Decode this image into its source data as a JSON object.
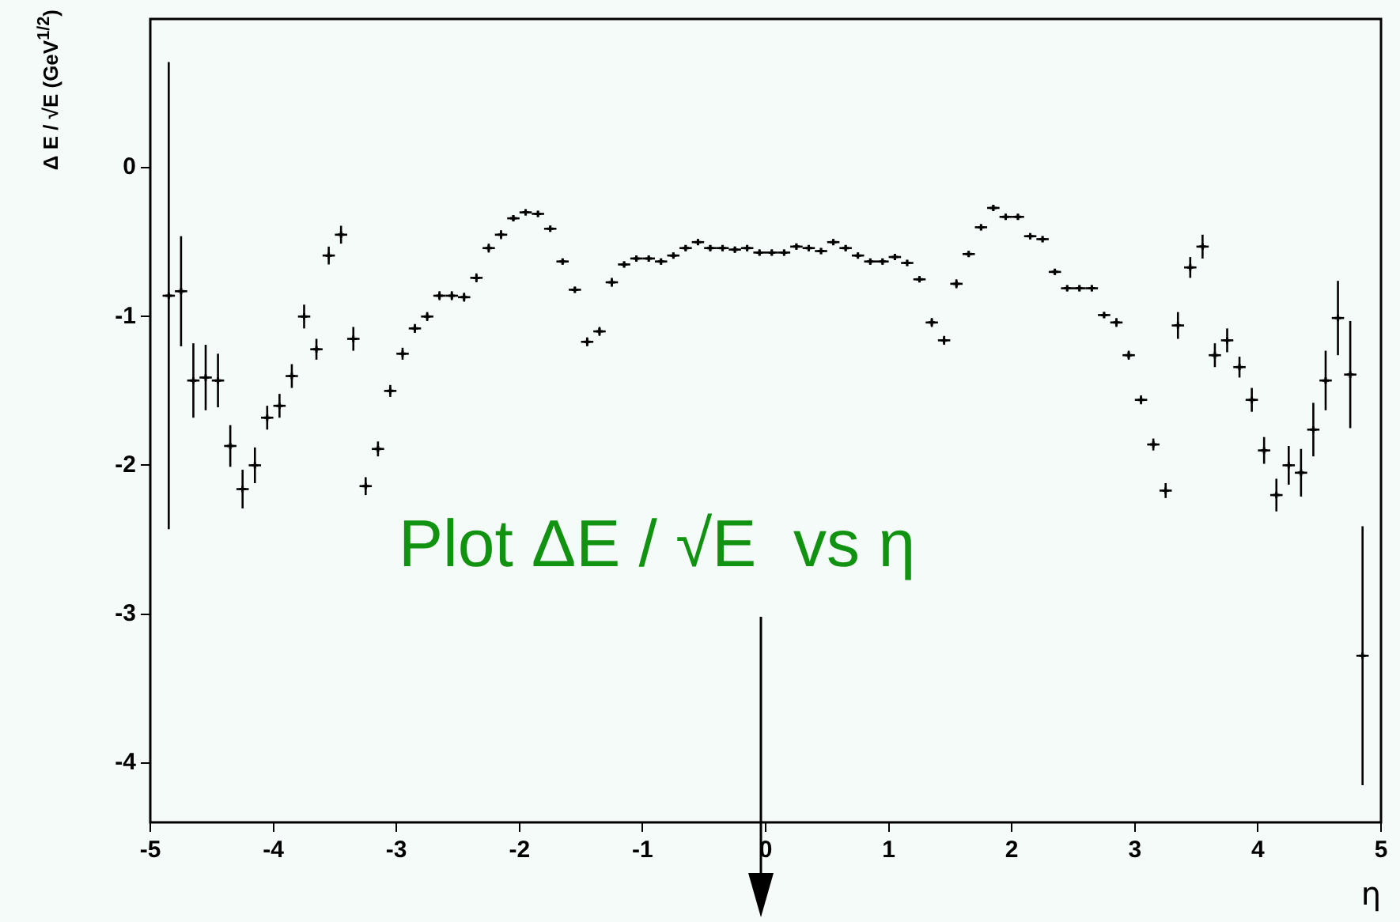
{
  "chart_data": {
    "type": "scatter",
    "xlabel": "η",
    "ylabel": "Δ E / √E (GeV$^{1/2}$)",
    "annotations": [
      "Plot ΔE / √E  vs η"
    ],
    "xlim": [
      -5,
      5
    ],
    "xticks": [
      -5,
      -4,
      -3,
      -2,
      -1,
      0,
      1,
      2,
      3,
      4,
      5
    ],
    "ylim": [
      -4.4,
      1
    ],
    "yticks": [
      -4,
      -3,
      -2,
      -1,
      0
    ],
    "grid": false,
    "legend": false,
    "marker": "cross",
    "series": [
      {
        "color": "#000000",
        "x": [
          -4.85,
          -4.75,
          -4.65,
          -4.55,
          -4.45,
          -4.35,
          -4.25,
          -4.15,
          -4.05,
          -3.95,
          -3.85,
          -3.75,
          -3.65,
          -3.55,
          -3.45,
          -3.35,
          -3.25,
          -3.15,
          -3.05,
          -2.95,
          -2.85,
          -2.75,
          -2.65,
          -2.55,
          -2.45,
          -2.35,
          -2.25,
          -2.15,
          -2.05,
          -1.95,
          -1.85,
          -1.75,
          -1.65,
          -1.55,
          -1.45,
          -1.35,
          -1.25,
          -1.15,
          -1.05,
          -0.95,
          -0.85,
          -0.75,
          -0.65,
          -0.55,
          -0.45,
          -0.35,
          -0.25,
          -0.15,
          -0.05,
          0.05,
          0.15,
          0.25,
          0.35,
          0.45,
          0.55,
          0.65,
          0.75,
          0.85,
          0.95,
          1.05,
          1.15,
          1.25,
          1.35,
          1.45,
          1.55,
          1.65,
          1.75,
          1.85,
          1.95,
          2.05,
          2.15,
          2.25,
          2.35,
          2.45,
          2.55,
          2.65,
          2.75,
          2.85,
          2.95,
          3.05,
          3.15,
          3.25,
          3.35,
          3.45,
          3.55,
          3.65,
          3.75,
          3.85,
          3.95,
          4.05,
          4.15,
          4.25,
          4.35,
          4.45,
          4.55,
          4.65,
          4.75,
          4.85
        ],
        "values": [
          -0.86,
          -0.83,
          -1.43,
          -1.41,
          -1.43,
          -1.87,
          -2.16,
          -2.0,
          -1.68,
          -1.6,
          -1.4,
          -1.0,
          -1.22,
          -0.59,
          -0.45,
          -1.15,
          -2.14,
          -1.89,
          -1.5,
          -1.25,
          -1.08,
          -1.0,
          -0.86,
          -0.86,
          -0.87,
          -0.74,
          -0.54,
          -0.45,
          -0.34,
          -0.3,
          -0.31,
          -0.41,
          -0.63,
          -0.82,
          -1.17,
          -1.1,
          -0.77,
          -0.65,
          -0.61,
          -0.61,
          -0.63,
          -0.59,
          -0.54,
          -0.5,
          -0.54,
          -0.54,
          -0.55,
          -0.54,
          -0.57,
          -0.57,
          -0.57,
          -0.53,
          -0.54,
          -0.56,
          -0.5,
          -0.54,
          -0.59,
          -0.63,
          -0.63,
          -0.6,
          -0.64,
          -0.75,
          -1.04,
          -1.16,
          -0.78,
          -0.58,
          -0.4,
          -0.27,
          -0.33,
          -0.33,
          -0.46,
          -0.48,
          -0.7,
          -0.81,
          -0.81,
          -0.81,
          -0.99,
          -1.04,
          -1.26,
          -1.56,
          -1.86,
          -2.17,
          -1.06,
          -0.67,
          -0.53,
          -1.26,
          -1.16,
          -1.34,
          -1.56,
          -1.9,
          -2.2,
          -2.0,
          -2.05,
          -1.76,
          -1.43,
          -1.01,
          -1.39,
          -3.28
        ],
        "errors": [
          1.57,
          0.37,
          0.25,
          0.22,
          0.18,
          0.14,
          0.13,
          0.12,
          0.08,
          0.08,
          0.08,
          0.08,
          0.07,
          0.06,
          0.06,
          0.08,
          0.06,
          0.05,
          0.04,
          0.04,
          0.03,
          0.03,
          0.03,
          0.03,
          0.03,
          0.03,
          0.03,
          0.03,
          0.02,
          0.02,
          0.02,
          0.02,
          0.02,
          0.02,
          0.03,
          0.03,
          0.03,
          0.02,
          0.02,
          0.02,
          0.02,
          0.02,
          0.02,
          0.02,
          0.02,
          0.02,
          0.02,
          0.02,
          0.02,
          0.02,
          0.02,
          0.02,
          0.02,
          0.02,
          0.02,
          0.02,
          0.02,
          0.02,
          0.02,
          0.02,
          0.02,
          0.02,
          0.03,
          0.03,
          0.03,
          0.02,
          0.02,
          0.02,
          0.02,
          0.02,
          0.02,
          0.02,
          0.02,
          0.02,
          0.02,
          0.02,
          0.02,
          0.03,
          0.03,
          0.03,
          0.04,
          0.05,
          0.09,
          0.07,
          0.08,
          0.08,
          0.08,
          0.07,
          0.08,
          0.09,
          0.11,
          0.13,
          0.16,
          0.18,
          0.2,
          0.25,
          0.36,
          0.87
        ],
        "xerrors": [
          0.05,
          0.05,
          0.05,
          0.05,
          0.05,
          0.05,
          0.05,
          0.05,
          0.05,
          0.05,
          0.05,
          0.05,
          0.05,
          0.05,
          0.05,
          0.05,
          0.05,
          0.05,
          0.05,
          0.05,
          0.05,
          0.05,
          0.05,
          0.05,
          0.05,
          0.05,
          0.05,
          0.05,
          0.05,
          0.05,
          0.05,
          0.05,
          0.05,
          0.05,
          0.05,
          0.05,
          0.05,
          0.05,
          0.05,
          0.05,
          0.05,
          0.05,
          0.05,
          0.05,
          0.05,
          0.05,
          0.05,
          0.05,
          0.05,
          0.05,
          0.05,
          0.05,
          0.05,
          0.05,
          0.05,
          0.05,
          0.05,
          0.05,
          0.05,
          0.05,
          0.05,
          0.05,
          0.05,
          0.05,
          0.05,
          0.05,
          0.05,
          0.05,
          0.05,
          0.05,
          0.05,
          0.05,
          0.05,
          0.05,
          0.05,
          0.05,
          0.05,
          0.05,
          0.05,
          0.05,
          0.05,
          0.05,
          0.05,
          0.05,
          0.05,
          0.05,
          0.05,
          0.05,
          0.05,
          0.05,
          0.05,
          0.05,
          0.05,
          0.05,
          0.05,
          0.05,
          0.05,
          0.05
        ]
      }
    ]
  }
}
